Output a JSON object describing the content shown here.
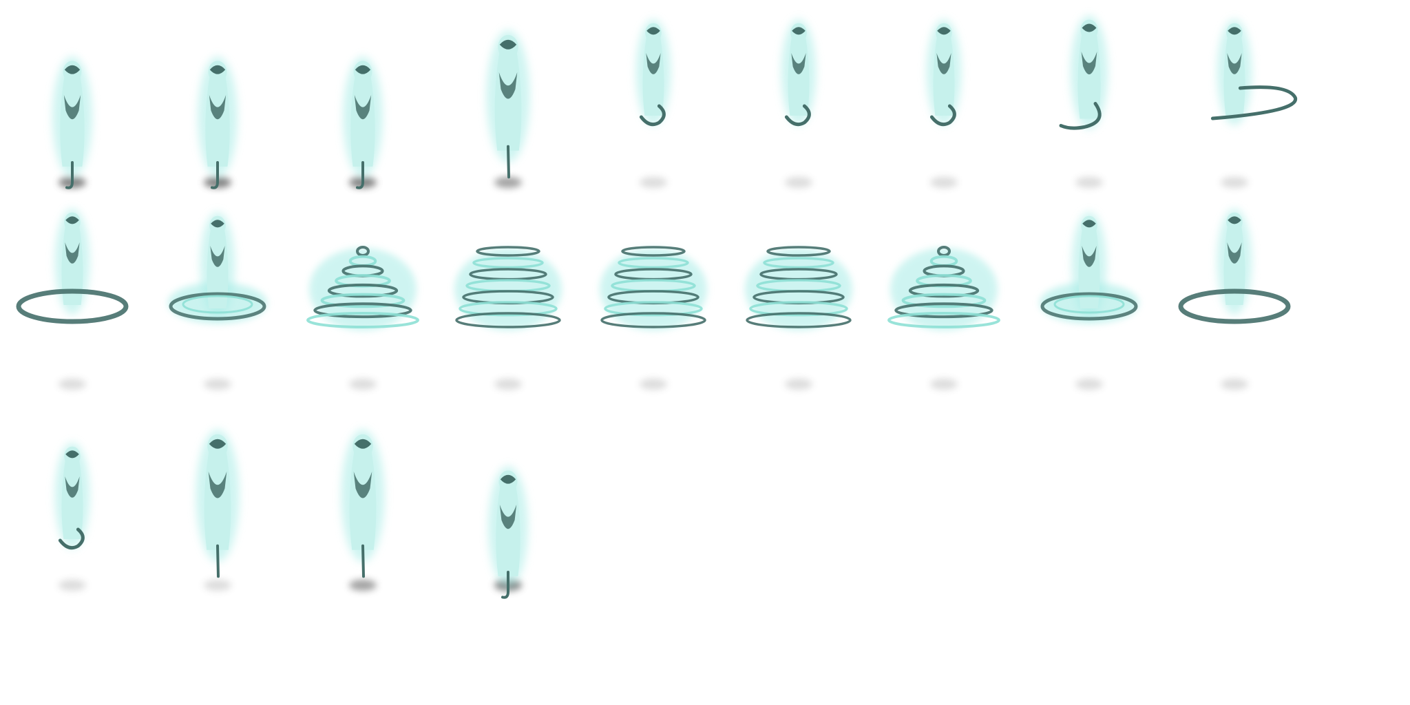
{
  "spritesheet": {
    "columns": 9,
    "frame_count": 22,
    "colors": {
      "body": "#c6f1ec",
      "dark": "#456f6a",
      "glow": "#a7ece6",
      "ring_light": "#8ee0d5",
      "shadow": "#555555",
      "background": "#ffffff"
    },
    "frames": [
      {
        "index": 0,
        "pose": "stand-tail-down",
        "shadow_opacity": 0.75
      },
      {
        "index": 1,
        "pose": "stand-tail-down",
        "shadow_opacity": 0.75
      },
      {
        "index": 2,
        "pose": "stand-tail-down",
        "shadow_opacity": 0.75
      },
      {
        "index": 3,
        "pose": "stretch-up",
        "shadow_opacity": 0.55
      },
      {
        "index": 4,
        "pose": "hover-tail-curl",
        "shadow_opacity": 0.2
      },
      {
        "index": 5,
        "pose": "turn-tail-curl",
        "shadow_opacity": 0.2
      },
      {
        "index": 6,
        "pose": "turn-tail-curl",
        "shadow_opacity": 0.2
      },
      {
        "index": 7,
        "pose": "lean-tail-swing",
        "shadow_opacity": 0.2
      },
      {
        "index": 8,
        "pose": "tail-sweep",
        "shadow_opacity": 0.2
      },
      {
        "index": 9,
        "pose": "ring-spin",
        "shadow_opacity": 0.2
      },
      {
        "index": 10,
        "pose": "ring-spin-glow",
        "shadow_opacity": 0.2
      },
      {
        "index": 11,
        "pose": "tornado-cone",
        "shadow_opacity": 0.2
      },
      {
        "index": 12,
        "pose": "tornado-full",
        "shadow_opacity": 0.2
      },
      {
        "index": 13,
        "pose": "tornado-full",
        "shadow_opacity": 0.2
      },
      {
        "index": 14,
        "pose": "tornado-full",
        "shadow_opacity": 0.2
      },
      {
        "index": 15,
        "pose": "tornado-cone",
        "shadow_opacity": 0.2
      },
      {
        "index": 16,
        "pose": "ring-spin-glow",
        "shadow_opacity": 0.2
      },
      {
        "index": 17,
        "pose": "ring-spin",
        "shadow_opacity": 0.2
      },
      {
        "index": 18,
        "pose": "hover-tail-curl",
        "shadow_opacity": 0.2
      },
      {
        "index": 19,
        "pose": "stretch-up",
        "shadow_opacity": 0.2
      },
      {
        "index": 20,
        "pose": "stretch-up",
        "shadow_opacity": 0.55
      },
      {
        "index": 21,
        "pose": "stand-tail-down",
        "shadow_opacity": 0.75
      }
    ]
  }
}
